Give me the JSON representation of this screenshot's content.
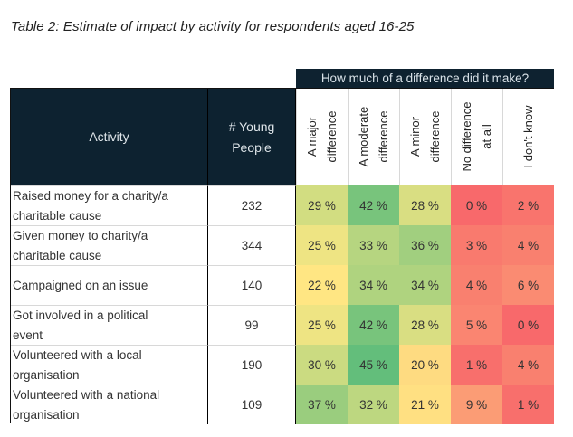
{
  "title": "Table 2: Estimate of impact by activity for respondents aged 16-25",
  "band_label": "How much of a difference did it make?",
  "headers": {
    "activity": "Activity",
    "young_people_line1": "# Young",
    "young_people_line2": "People",
    "columns": [
      {
        "line1": "A major",
        "line2": "difference"
      },
      {
        "line1": "A moderate",
        "line2": "difference"
      },
      {
        "line1": "A minor",
        "line2": "difference"
      },
      {
        "line1": "No difference",
        "line2": "at all"
      },
      {
        "line1": "I don't know",
        "line2": ""
      }
    ]
  },
  "color_scale": {
    "low": "#f8696b",
    "mid": "#ffe984",
    "high": "#63be7b"
  },
  "chart_data": {
    "type": "heatmap",
    "title": "Table 2: Estimate of impact by activity for respondents aged 16-25",
    "xlabel": "How much of a difference did it make?",
    "ylabel": "Activity",
    "columns": [
      "A major difference",
      "A moderate difference",
      "A minor difference",
      "No difference at all",
      "I don't know"
    ],
    "unit": "%",
    "rows": [
      {
        "activity_line1": "Raised money for a charity/a",
        "activity_line2": "charitable cause",
        "young_people": "232",
        "values": [
          29,
          42,
          28,
          0,
          2
        ]
      },
      {
        "activity_line1": "Given money to charity/a",
        "activity_line2": "charitable cause",
        "young_people": "344",
        "values": [
          25,
          33,
          36,
          3,
          4
        ]
      },
      {
        "activity_line1": "Campaigned on an issue",
        "activity_line2": "",
        "young_people": "140",
        "values": [
          22,
          34,
          34,
          4,
          6
        ]
      },
      {
        "activity_line1": "Got involved in a political",
        "activity_line2": "event",
        "young_people": "99",
        "values": [
          25,
          42,
          28,
          5,
          0
        ]
      },
      {
        "activity_line1": "Volunteered with a local",
        "activity_line2": "organisation",
        "young_people": "190",
        "values": [
          30,
          45,
          20,
          1,
          4
        ]
      },
      {
        "activity_line1": "Volunteered with a national",
        "activity_line2": "organisation",
        "young_people": "109",
        "values": [
          37,
          32,
          21,
          9,
          1
        ]
      }
    ]
  }
}
